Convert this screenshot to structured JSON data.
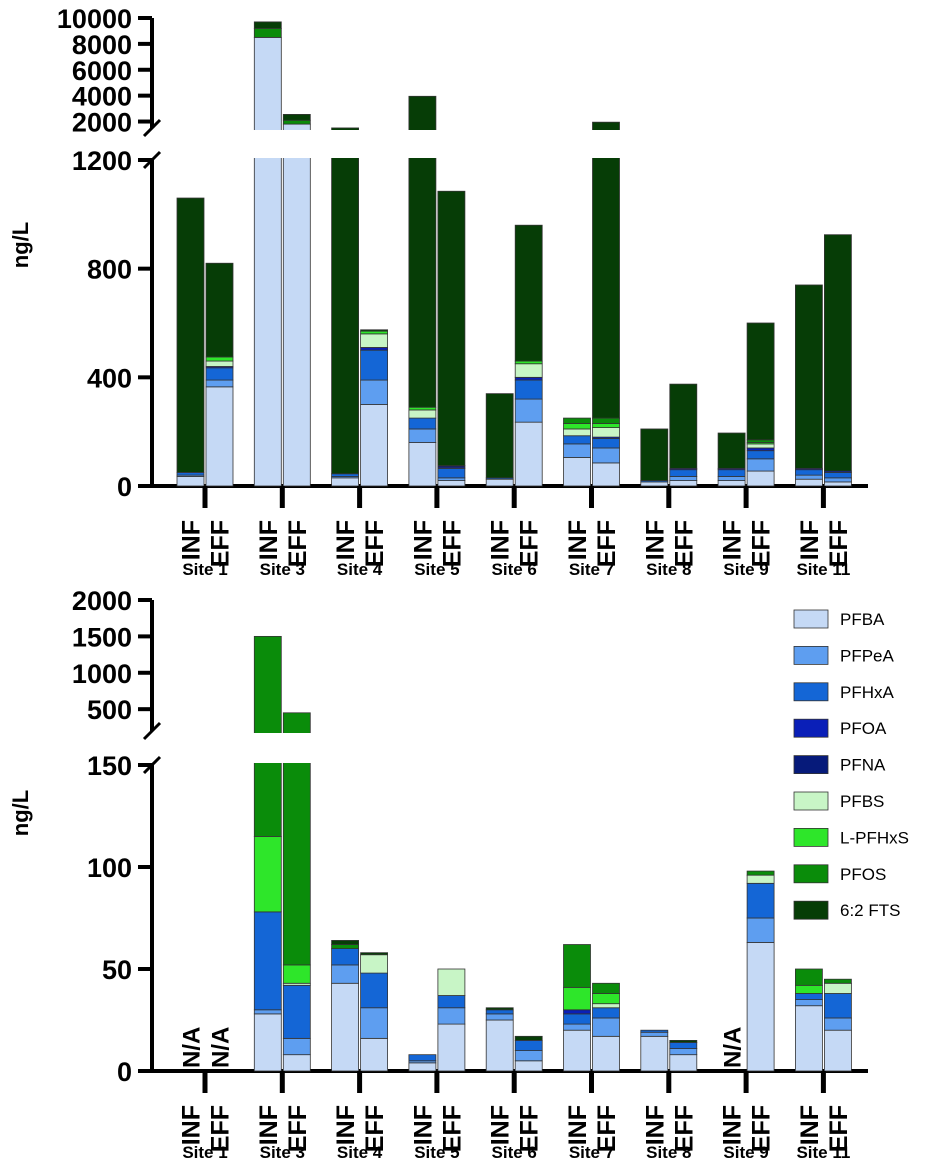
{
  "legend": [
    "PFBA",
    "PFPeA",
    "PFHxA",
    "PFOA",
    "PFNA",
    "PFBS",
    "L-PFHxS",
    "PFOS",
    "6:2 FTS"
  ],
  "colors": {
    "PFBA": "#c5d9f5",
    "PFPeA": "#5e9ef0",
    "PFHxA": "#1466d6",
    "PFOA": "#0a1fb8",
    "PFNA": "#061a7a",
    "PFBS": "#c8f5c6",
    "L-PFHxS": "#2ee62a",
    "PFOS": "#0a8c0a",
    "6:2 FTS": "#063d06"
  },
  "chart_data": [
    {
      "type": "bar",
      "stacked": true,
      "ylabel": "ng/L",
      "sites": [
        "Site 1",
        "Site 3",
        "Site 4",
        "Site 5",
        "Site 6",
        "Site 7",
        "Site 8",
        "Site 9",
        "Site 11"
      ],
      "bar_labels": [
        "INF",
        "EFF"
      ],
      "y_ticks_lower": [
        "0",
        "400",
        "800",
        "1200"
      ],
      "y_ticks_upper": [
        "2000",
        "4000",
        "6000",
        "8000",
        "10000"
      ],
      "segment_breaks": [
        [
          0,
          1200
        ],
        [
          1500,
          10000
        ]
      ],
      "bars": [
        {
          "site": "Site 1",
          "label": "INF",
          "values": [
            35,
            5,
            10,
            0,
            0,
            0,
            0,
            0,
            1010
          ]
        },
        {
          "site": "Site 1",
          "label": "EFF",
          "values": [
            365,
            25,
            45,
            5,
            0,
            20,
            15,
            0,
            345
          ]
        },
        {
          "site": "Site 3",
          "label": "INF",
          "values": [
            8500,
            0,
            0,
            0,
            0,
            0,
            0,
            700,
            500
          ]
        },
        {
          "site": "Site 3",
          "label": "EFF",
          "values": [
            1800,
            0,
            0,
            0,
            0,
            0,
            0,
            300,
            450
          ]
        },
        {
          "site": "Site 4",
          "label": "INF",
          "values": [
            30,
            5,
            10,
            0,
            0,
            0,
            0,
            0,
            1460
          ]
        },
        {
          "site": "Site 4",
          "label": "EFF",
          "values": [
            300,
            90,
            110,
            10,
            0,
            50,
            10,
            0,
            5
          ]
        },
        {
          "site": "Site 5",
          "label": "INF",
          "values": [
            160,
            50,
            40,
            0,
            0,
            30,
            10,
            0,
            3660
          ]
        },
        {
          "site": "Site 5",
          "label": "EFF",
          "values": [
            20,
            10,
            35,
            5,
            5,
            0,
            0,
            0,
            1010
          ]
        },
        {
          "site": "Site 6",
          "label": "INF",
          "values": [
            25,
            0,
            5,
            0,
            0,
            0,
            0,
            0,
            310
          ]
        },
        {
          "site": "Site 6",
          "label": "EFF",
          "values": [
            235,
            85,
            70,
            10,
            0,
            50,
            10,
            0,
            500
          ]
        },
        {
          "site": "Site 7",
          "label": "INF",
          "values": [
            105,
            50,
            30,
            0,
            0,
            25,
            20,
            20,
            0
          ]
        },
        {
          "site": "Site 7",
          "label": "EFF",
          "values": [
            85,
            55,
            35,
            5,
            0,
            35,
            15,
            20,
            1700
          ]
        },
        {
          "site": "Site 8",
          "label": "INF",
          "values": [
            15,
            0,
            5,
            0,
            0,
            0,
            0,
            0,
            190
          ]
        },
        {
          "site": "Site 8",
          "label": "EFF",
          "values": [
            20,
            15,
            25,
            5,
            0,
            0,
            0,
            0,
            310
          ]
        },
        {
          "site": "Site 9",
          "label": "INF",
          "values": [
            20,
            15,
            25,
            5,
            0,
            0,
            0,
            0,
            130
          ]
        },
        {
          "site": "Site 9",
          "label": "EFF",
          "values": [
            55,
            45,
            30,
            10,
            0,
            15,
            5,
            10,
            430
          ]
        },
        {
          "site": "Site 11",
          "label": "INF",
          "values": [
            25,
            15,
            20,
            5,
            0,
            0,
            0,
            0,
            675
          ]
        },
        {
          "site": "Site 11",
          "label": "EFF",
          "values": [
            15,
            15,
            20,
            5,
            0,
            0,
            0,
            0,
            870
          ]
        }
      ]
    },
    {
      "type": "bar",
      "stacked": true,
      "ylabel": "ng/L",
      "sites": [
        "Site 1",
        "Site 3",
        "Site 4",
        "Site 5",
        "Site 6",
        "Site 7",
        "Site 8",
        "Site 9",
        "Site 11"
      ],
      "bar_labels": [
        "INF",
        "EFF"
      ],
      "y_ticks_lower": [
        "0",
        "50",
        "100",
        "150"
      ],
      "y_ticks_upper": [
        "500",
        "1000",
        "1500",
        "2000"
      ],
      "segment_breaks": [
        [
          0,
          150
        ],
        [
          200,
          2000
        ]
      ],
      "na_text": "N/A",
      "bars": [
        {
          "site": "Site 1",
          "label": "INF",
          "na": true,
          "values": [
            0,
            0,
            0,
            0,
            0,
            0,
            0,
            0,
            0
          ]
        },
        {
          "site": "Site 1",
          "label": "EFF",
          "na": true,
          "values": [
            0,
            0,
            0,
            0,
            0,
            0,
            0,
            0,
            0
          ]
        },
        {
          "site": "Site 3",
          "label": "INF",
          "values": [
            28,
            2,
            48,
            0,
            0,
            0,
            37,
            1385,
            0
          ]
        },
        {
          "site": "Site 3",
          "label": "EFF",
          "values": [
            8,
            8,
            26,
            0,
            0,
            1,
            9,
            398,
            0
          ]
        },
        {
          "site": "Site 4",
          "label": "INF",
          "values": [
            43,
            9,
            8,
            0,
            0,
            0,
            0,
            2,
            2
          ]
        },
        {
          "site": "Site 4",
          "label": "EFF",
          "values": [
            16,
            15,
            17,
            0,
            0,
            9,
            0,
            0,
            1
          ]
        },
        {
          "site": "Site 5",
          "label": "INF",
          "values": [
            4,
            1,
            3,
            0,
            0,
            0,
            0,
            0,
            0
          ]
        },
        {
          "site": "Site 5",
          "label": "EFF",
          "values": [
            23,
            8,
            6,
            0,
            0,
            13,
            0,
            0,
            0
          ]
        },
        {
          "site": "Site 6",
          "label": "INF",
          "values": [
            25,
            3,
            2,
            0,
            0,
            0,
            0,
            0,
            1
          ]
        },
        {
          "site": "Site 6",
          "label": "EFF",
          "values": [
            5,
            5,
            5,
            0,
            0,
            0,
            0,
            0,
            2
          ]
        },
        {
          "site": "Site 7",
          "label": "INF",
          "values": [
            20,
            3,
            5,
            2,
            0,
            0,
            11,
            21,
            0
          ]
        },
        {
          "site": "Site 7",
          "label": "EFF",
          "values": [
            17,
            9,
            5,
            0,
            0,
            2,
            5,
            5,
            0
          ]
        },
        {
          "site": "Site 8",
          "label": "INF",
          "values": [
            17,
            2,
            1,
            0,
            0,
            0,
            0,
            0,
            0
          ]
        },
        {
          "site": "Site 8",
          "label": "EFF",
          "values": [
            8,
            3,
            3,
            0,
            0,
            0,
            0,
            0,
            1
          ]
        },
        {
          "site": "Site 9",
          "label": "INF",
          "na": true,
          "values": [
            0,
            0,
            0,
            0,
            0,
            0,
            0,
            0,
            0
          ]
        },
        {
          "site": "Site 9",
          "label": "EFF",
          "values": [
            63,
            12,
            17,
            0,
            0,
            4,
            0,
            2,
            0
          ]
        },
        {
          "site": "Site 11",
          "label": "INF",
          "values": [
            32,
            3,
            3,
            0,
            0,
            0,
            4,
            8,
            0
          ]
        },
        {
          "site": "Site 11",
          "label": "EFF",
          "values": [
            20,
            6,
            12,
            0,
            0,
            5,
            0,
            2,
            0
          ]
        }
      ]
    }
  ]
}
